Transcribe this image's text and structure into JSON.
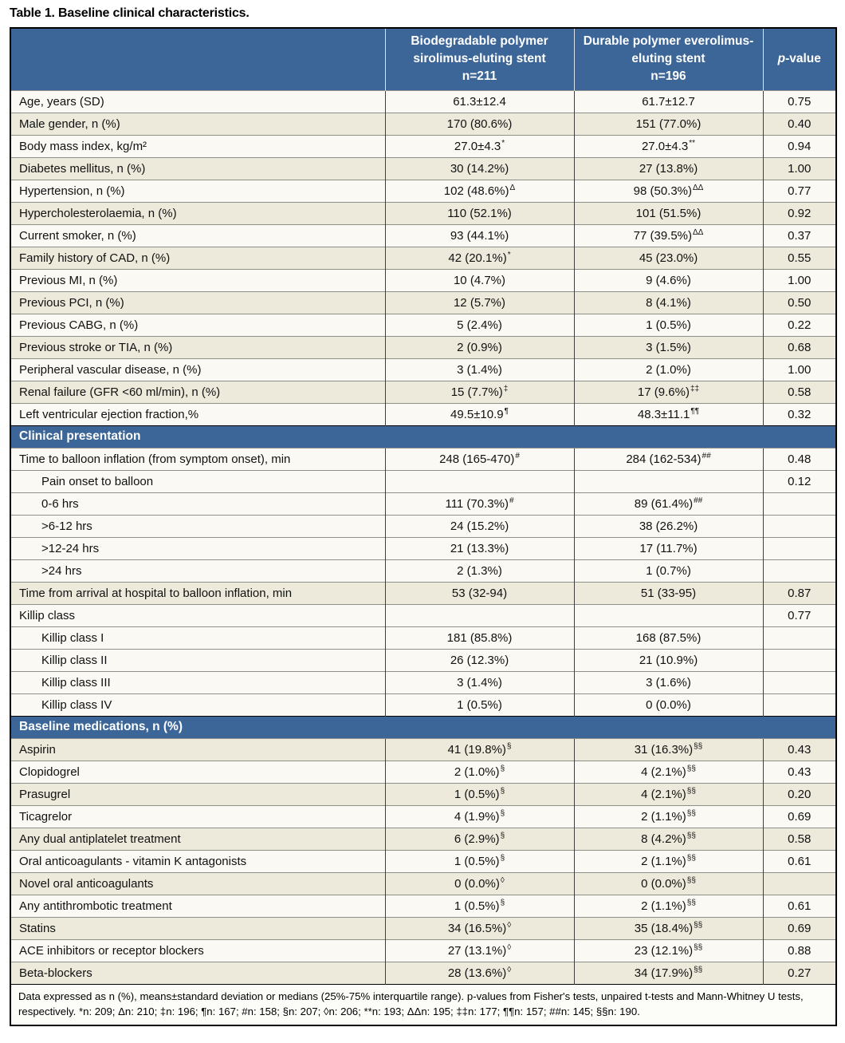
{
  "title": "Table 1. Baseline clinical characteristics.",
  "colors": {
    "header_blue": "#3c6698",
    "row_beige": "#edeadc",
    "row_white": "#faf9f3",
    "outer_border": "#000000"
  },
  "table": {
    "header": {
      "col_label": "",
      "col_group1": "Biodegradable polymer\nsirolimus-eluting stent\nn=211",
      "col_group2": "Durable polymer everolimus-\neluting stent\nn=196",
      "pvalue_p": "p",
      "pvalue_rest": "-value"
    },
    "rows": [
      {
        "type": "data",
        "label": "Age, years (SD)",
        "indent": false,
        "shaded": false,
        "v1": "61.3±12.4",
        "s1": "",
        "v2": "61.7±12.7",
        "s2": "",
        "p": "0.75"
      },
      {
        "type": "data",
        "label": "Male gender, n (%)",
        "indent": false,
        "shaded": true,
        "v1": "170 (80.6%)",
        "s1": "",
        "v2": "151 (77.0%)",
        "s2": "",
        "p": "0.40"
      },
      {
        "type": "data",
        "label": "Body mass index, kg/m²",
        "indent": false,
        "shaded": false,
        "v1": "27.0±4.3",
        "s1": "*",
        "v2": "27.0±4.3",
        "s2": "**",
        "p": "0.94"
      },
      {
        "type": "data",
        "label": "Diabetes mellitus, n (%)",
        "indent": false,
        "shaded": true,
        "v1": "30 (14.2%)",
        "s1": "",
        "v2": "27 (13.8%)",
        "s2": "",
        "p": "1.00"
      },
      {
        "type": "data",
        "label": "Hypertension, n (%)",
        "indent": false,
        "shaded": false,
        "v1": "102 (48.6%)",
        "s1": "Δ",
        "v2": "98 (50.3%)",
        "s2": "ΔΔ",
        "p": "0.77"
      },
      {
        "type": "data",
        "label": "Hypercholesterolaemia, n (%)",
        "indent": false,
        "shaded": true,
        "v1": "110 (52.1%)",
        "s1": "",
        "v2": "101 (51.5%)",
        "s2": "",
        "p": "0.92"
      },
      {
        "type": "data",
        "label": "Current smoker, n (%)",
        "indent": false,
        "shaded": false,
        "v1": "93 (44.1%)",
        "s1": "",
        "v2": "77 (39.5%)",
        "s2": "ΔΔ",
        "p": "0.37"
      },
      {
        "type": "data",
        "label": "Family history of CAD, n (%)",
        "indent": false,
        "shaded": true,
        "v1": "42 (20.1%)",
        "s1": "*",
        "v2": "45 (23.0%)",
        "s2": "",
        "p": "0.55"
      },
      {
        "type": "data",
        "label": "Previous MI, n (%)",
        "indent": false,
        "shaded": false,
        "v1": "10 (4.7%)",
        "s1": "",
        "v2": "9 (4.6%)",
        "s2": "",
        "p": "1.00"
      },
      {
        "type": "data",
        "label": "Previous PCI, n (%)",
        "indent": false,
        "shaded": true,
        "v1": "12 (5.7%)",
        "s1": "",
        "v2": "8 (4.1%)",
        "s2": "",
        "p": "0.50"
      },
      {
        "type": "data",
        "label": "Previous CABG, n (%)",
        "indent": false,
        "shaded": false,
        "v1": "5 (2.4%)",
        "s1": "",
        "v2": "1 (0.5%)",
        "s2": "",
        "p": "0.22"
      },
      {
        "type": "data",
        "label": "Previous stroke or TIA, n (%)",
        "indent": false,
        "shaded": true,
        "v1": "2 (0.9%)",
        "s1": "",
        "v2": "3 (1.5%)",
        "s2": "",
        "p": "0.68"
      },
      {
        "type": "data",
        "label": "Peripheral vascular disease, n (%)",
        "indent": false,
        "shaded": false,
        "v1": "3 (1.4%)",
        "s1": "",
        "v2": "2 (1.0%)",
        "s2": "",
        "p": "1.00"
      },
      {
        "type": "data",
        "label": "Renal failure (GFR <60 ml/min), n (%)",
        "indent": false,
        "shaded": true,
        "v1": "15 (7.7%)",
        "s1": "‡",
        "v2": "17 (9.6%)",
        "s2": "‡‡",
        "p": "0.58"
      },
      {
        "type": "data",
        "label": "Left ventricular ejection fraction,%",
        "indent": false,
        "shaded": false,
        "v1": "49.5±10.9",
        "s1": "¶",
        "v2": "48.3±11.1",
        "s2": "¶¶",
        "p": "0.32"
      },
      {
        "type": "section",
        "label": "Clinical presentation"
      },
      {
        "type": "data",
        "label": "Time to balloon inflation (from symptom onset), min",
        "indent": false,
        "shaded": false,
        "v1": "248 (165-470)",
        "s1": "#",
        "v2": "284 (162-534)",
        "s2": "##",
        "p": "0.48"
      },
      {
        "type": "data",
        "label": "Pain onset to balloon",
        "indent": true,
        "shaded": false,
        "v1": "",
        "s1": "",
        "v2": "",
        "s2": "",
        "p": "0.12"
      },
      {
        "type": "data",
        "label": "0-6 hrs",
        "indent": true,
        "shaded": false,
        "v1": "111 (70.3%)",
        "s1": "#",
        "v2": "89 (61.4%)",
        "s2": "##",
        "p": ""
      },
      {
        "type": "data",
        "label": ">6-12 hrs",
        "indent": true,
        "shaded": false,
        "v1": "24 (15.2%)",
        "s1": "",
        "v2": "38 (26.2%)",
        "s2": "",
        "p": ""
      },
      {
        "type": "data",
        "label": ">12-24 hrs",
        "indent": true,
        "shaded": false,
        "v1": "21 (13.3%)",
        "s1": "",
        "v2": "17 (11.7%)",
        "s2": "",
        "p": ""
      },
      {
        "type": "data",
        "label": ">24 hrs",
        "indent": true,
        "shaded": false,
        "v1": "2 (1.3%)",
        "s1": "",
        "v2": "1 (0.7%)",
        "s2": "",
        "p": ""
      },
      {
        "type": "data",
        "label": "Time from arrival at hospital to balloon inflation, min",
        "indent": false,
        "shaded": true,
        "v1": "53 (32-94)",
        "s1": "",
        "v2": "51 (33-95)",
        "s2": "",
        "p": "0.87"
      },
      {
        "type": "data",
        "label": "Killip class",
        "indent": false,
        "shaded": false,
        "v1": "",
        "s1": "",
        "v2": "",
        "s2": "",
        "p": "0.77"
      },
      {
        "type": "data",
        "label": "Killip class I",
        "indent": true,
        "shaded": false,
        "v1": "181 (85.8%)",
        "s1": "",
        "v2": "168 (87.5%)",
        "s2": "",
        "p": ""
      },
      {
        "type": "data",
        "label": "Killip class II",
        "indent": true,
        "shaded": false,
        "v1": "26 (12.3%)",
        "s1": "",
        "v2": "21 (10.9%)",
        "s2": "",
        "p": ""
      },
      {
        "type": "data",
        "label": "Killip class III",
        "indent": true,
        "shaded": false,
        "v1": "3 (1.4%)",
        "s1": "",
        "v2": "3 (1.6%)",
        "s2": "",
        "p": ""
      },
      {
        "type": "data",
        "label": "Killip class IV",
        "indent": true,
        "shaded": false,
        "v1": "1 (0.5%)",
        "s1": "",
        "v2": "0 (0.0%)",
        "s2": "",
        "p": ""
      },
      {
        "type": "section",
        "label": "Baseline medications, n (%)"
      },
      {
        "type": "data",
        "label": "Aspirin",
        "indent": false,
        "shaded": true,
        "v1": "41 (19.8%)",
        "s1": "§",
        "v2": "31 (16.3%)",
        "s2": "§§",
        "p": "0.43"
      },
      {
        "type": "data",
        "label": "Clopidogrel",
        "indent": false,
        "shaded": false,
        "v1": "2 (1.0%)",
        "s1": "§",
        "v2": "4 (2.1%)",
        "s2": "§§",
        "p": "0.43"
      },
      {
        "type": "data",
        "label": "Prasugrel",
        "indent": false,
        "shaded": true,
        "v1": "1 (0.5%)",
        "s1": "§",
        "v2": "4 (2.1%)",
        "s2": "§§",
        "p": "0.20"
      },
      {
        "type": "data",
        "label": "Ticagrelor",
        "indent": false,
        "shaded": false,
        "v1": "4 (1.9%)",
        "s1": "§",
        "v2": "2 (1.1%)",
        "s2": "§§",
        "p": "0.69"
      },
      {
        "type": "data",
        "label": "Any dual antiplatelet treatment",
        "indent": false,
        "shaded": true,
        "v1": "6 (2.9%)",
        "s1": "§",
        "v2": "8 (4.2%)",
        "s2": "§§",
        "p": "0.58"
      },
      {
        "type": "data",
        "label": "Oral anticoagulants - vitamin K antagonists",
        "indent": false,
        "shaded": false,
        "v1": "1 (0.5%)",
        "s1": "§",
        "v2": "2 (1.1%)",
        "s2": "§§",
        "p": "0.61"
      },
      {
        "type": "data",
        "label": "Novel oral anticoagulants",
        "indent": false,
        "shaded": true,
        "v1": "0 (0.0%)",
        "s1": "◊",
        "v2": "0 (0.0%)",
        "s2": "§§",
        "p": ""
      },
      {
        "type": "data",
        "label": "Any antithrombotic treatment",
        "indent": false,
        "shaded": false,
        "v1": "1 (0.5%)",
        "s1": "§",
        "v2": "2 (1.1%)",
        "s2": "§§",
        "p": "0.61"
      },
      {
        "type": "data",
        "label": "Statins",
        "indent": false,
        "shaded": true,
        "v1": "34 (16.5%)",
        "s1": "◊",
        "v2": "35 (18.4%)",
        "s2": "§§",
        "p": "0.69"
      },
      {
        "type": "data",
        "label": "ACE inhibitors or receptor blockers",
        "indent": false,
        "shaded": false,
        "v1": "27 (13.1%)",
        "s1": "◊",
        "v2": "23 (12.1%)",
        "s2": "§§",
        "p": "0.88"
      },
      {
        "type": "data",
        "label": "Beta-blockers",
        "indent": false,
        "shaded": true,
        "v1": "28 (13.6%)",
        "s1": "◊",
        "v2": "34 (17.9%)",
        "s2": "§§",
        "p": "0.27"
      }
    ],
    "footnote": "Data expressed as n (%), means±standard deviation or medians (25%-75% interquartile range). p-values from Fisher's tests, unpaired t-tests and Mann-Whitney U tests, respectively. *n: 209; Δn: 210; ‡n: 196; ¶n: 167; #n: 158; §n: 207; ◊n: 206; **n: 193; ΔΔn: 195; ‡‡n: 177; ¶¶n: 157; ##n: 145; §§n: 190."
  }
}
